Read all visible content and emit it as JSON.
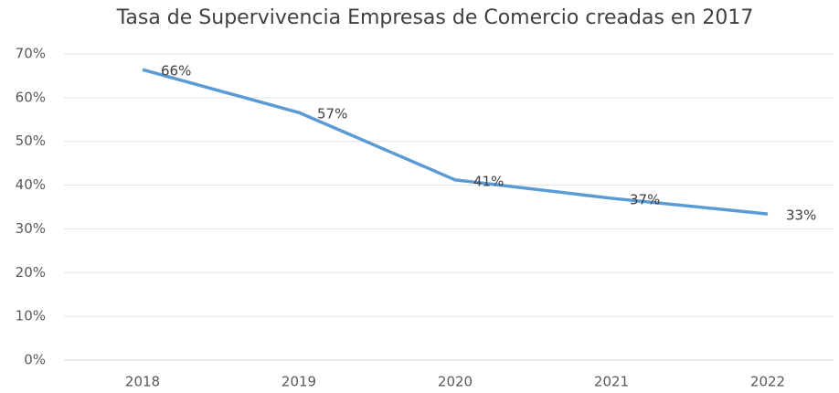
{
  "chart_data": {
    "type": "line",
    "title": "Tasa de Supervivencia Empresas de Comercio creadas en 2017",
    "categories": [
      "2018",
      "2019",
      "2020",
      "2021",
      "2022"
    ],
    "series": [
      {
        "name": "Tasa de Supervivencia",
        "color": "#5b9bd5",
        "values": [
          66.4,
          56.6,
          41.2,
          37.0,
          33.4
        ],
        "value_labels": [
          "66%",
          "57%",
          "41%",
          "37%",
          "33%"
        ]
      }
    ],
    "ylim": [
      0,
      70
    ],
    "yticks": [
      {
        "value": 0,
        "label": "0%"
      },
      {
        "value": 10,
        "label": "10%"
      },
      {
        "value": 20,
        "label": "20%"
      },
      {
        "value": 30,
        "label": "30%"
      },
      {
        "value": 40,
        "label": "40%"
      },
      {
        "value": 50,
        "label": "50%"
      },
      {
        "value": 60,
        "label": "60%"
      },
      {
        "value": 70,
        "label": "70%"
      }
    ],
    "grid": true
  }
}
